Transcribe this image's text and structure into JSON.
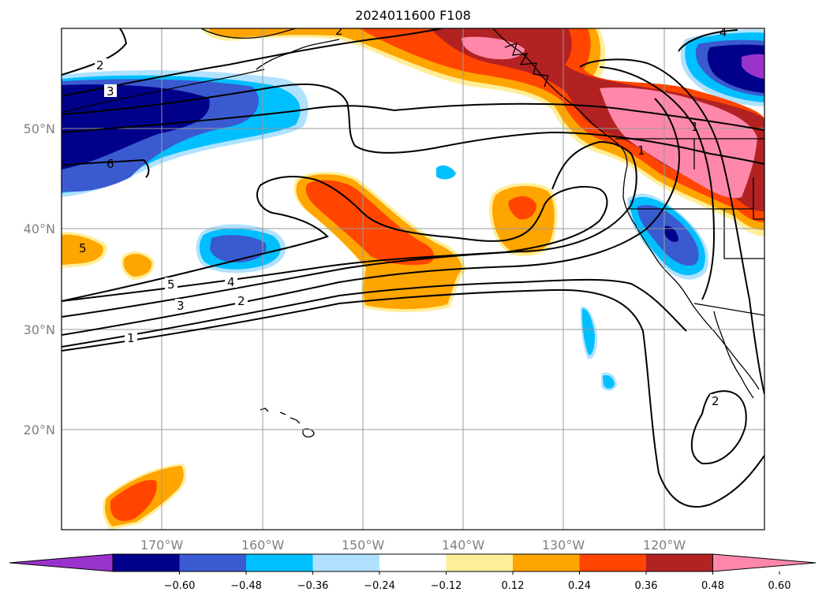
{
  "title": "2024011600 F108",
  "map": {
    "lat_ticks": [
      "50°N",
      "40°N",
      "30°N",
      "20°N"
    ],
    "lon_ticks": [
      "170°W",
      "160°W",
      "150°W",
      "140°W",
      "130°W",
      "120°W"
    ],
    "extent": {
      "lon_min": "180°W",
      "lon_max": "110°W",
      "lat_min": "10°N",
      "lat_max": "60°N"
    },
    "grid": true
  },
  "colorbar": {
    "ticks": [
      "−0.60",
      "−0.48",
      "−0.36",
      "−0.24",
      "−0.12",
      "0.12",
      "0.24",
      "0.36",
      "0.48",
      "0.60"
    ],
    "colors": [
      "#9933cc",
      "#00008b",
      "#3a5bd0",
      "#00bfff",
      "#b0e2ff",
      "#ffffff",
      "#ffee99",
      "#ffa500",
      "#ff4500",
      "#b22222",
      "#ff88aa"
    ],
    "extend": "both"
  },
  "contour_labels": [
    "2",
    "3",
    "6",
    "5",
    "4",
    "3",
    "2",
    "1",
    "5",
    "4",
    "2",
    "1",
    "1",
    "2"
  ]
}
